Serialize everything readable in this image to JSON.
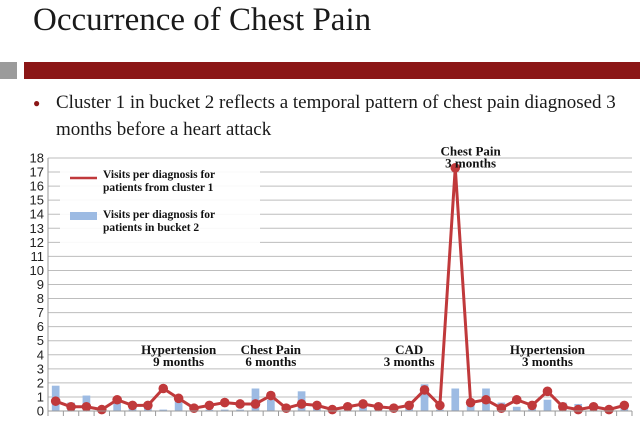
{
  "slide": {
    "title": "Occurrence of Chest Pain",
    "bullet": "Cluster 1 in bucket 2 reflects a temporal pattern of chest pain diagnosed 3 months before a heart attack"
  },
  "chart_data": {
    "type": "bar",
    "title": "",
    "xlabel": "",
    "ylabel": "",
    "ylim": [
      0,
      18
    ],
    "yticks": [
      "0",
      "1",
      "2",
      "3",
      "4",
      "5",
      "6",
      "7",
      "8",
      "9",
      "10",
      "11",
      "12",
      "13",
      "14",
      "15",
      "16",
      "17",
      "18"
    ],
    "grid": true,
    "legend": "top-left",
    "series": [
      {
        "name": "Visits per diagnosis for patients from cluster 1",
        "type": "line",
        "color": "#c0393b",
        "values": [
          0.7,
          0.3,
          0.3,
          0.1,
          0.8,
          0.4,
          0.4,
          1.6,
          0.9,
          0.2,
          0.4,
          0.6,
          0.5,
          0.5,
          1.1,
          0.2,
          0.5,
          0.4,
          0.1,
          0.3,
          0.5,
          0.3,
          0.2,
          0.4,
          1.5,
          0.4,
          17.3,
          0.6,
          0.8,
          0.2,
          0.8,
          0.4,
          1.4,
          0.3,
          0.1,
          0.3,
          0.1,
          0.4
        ]
      },
      {
        "name": "Visits per diagnosis for patients in bucket 2",
        "type": "bar",
        "color": "#9dbbe3",
        "values": [
          1.8,
          0.6,
          1.1,
          0.1,
          0.9,
          0.5,
          0.5,
          0.1,
          0.9,
          0.3,
          0.1,
          0.1,
          0.1,
          1.6,
          0.8,
          0.1,
          1.4,
          0.6,
          0.1,
          0.1,
          0.6,
          0.1,
          0.1,
          0.3,
          1.9,
          0.1,
          1.6,
          0.4,
          1.6,
          0.6,
          0.3,
          0.6,
          0.8,
          0.6,
          0.5,
          0.2,
          0.3,
          0.5
        ]
      }
    ],
    "annotations": [
      {
        "lines": [
          "Hypertension",
          "9 months"
        ],
        "x_index": 8,
        "y": 3.5
      },
      {
        "lines": [
          "Chest Pain",
          "6 months"
        ],
        "x_index": 14,
        "y": 3.5
      },
      {
        "lines": [
          "CAD",
          "3 months"
        ],
        "x_index": 23,
        "y": 3.5
      },
      {
        "lines": [
          "Chest Pain",
          "3 months"
        ],
        "x_index": 27,
        "y": 17.6
      },
      {
        "lines": [
          "Hypertension",
          "3 months"
        ],
        "x_index": 32,
        "y": 3.5
      }
    ]
  }
}
